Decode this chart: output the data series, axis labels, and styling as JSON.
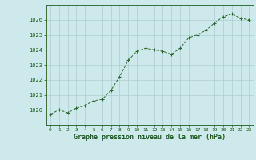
{
  "x": [
    0,
    1,
    2,
    3,
    4,
    5,
    6,
    7,
    8,
    9,
    10,
    11,
    12,
    13,
    14,
    15,
    16,
    17,
    18,
    19,
    20,
    21,
    22,
    23
  ],
  "y": [
    1019.7,
    1020.0,
    1019.8,
    1020.1,
    1020.3,
    1020.6,
    1020.7,
    1021.3,
    1022.2,
    1023.3,
    1023.9,
    1024.1,
    1024.0,
    1023.9,
    1023.7,
    1024.1,
    1024.8,
    1025.0,
    1025.3,
    1025.8,
    1026.2,
    1026.4,
    1026.1,
    1026.0
  ],
  "line_color": "#2d6a2d",
  "marker_color": "#2d6a2d",
  "bg_color": "#cde9ec",
  "grid_color": "#aacdd1",
  "xlabel": "Graphe pression niveau de la mer (hPa)",
  "xlabel_color": "#1a5c1a",
  "tick_color": "#1a5c1a",
  "ylim": [
    1019.0,
    1027.0
  ],
  "yticks": [
    1020,
    1021,
    1022,
    1023,
    1024,
    1025,
    1026
  ],
  "xticks": [
    0,
    1,
    2,
    3,
    4,
    5,
    6,
    7,
    8,
    9,
    10,
    11,
    12,
    13,
    14,
    15,
    16,
    17,
    18,
    19,
    20,
    21,
    22,
    23
  ],
  "xlim": [
    -0.5,
    23.5
  ]
}
